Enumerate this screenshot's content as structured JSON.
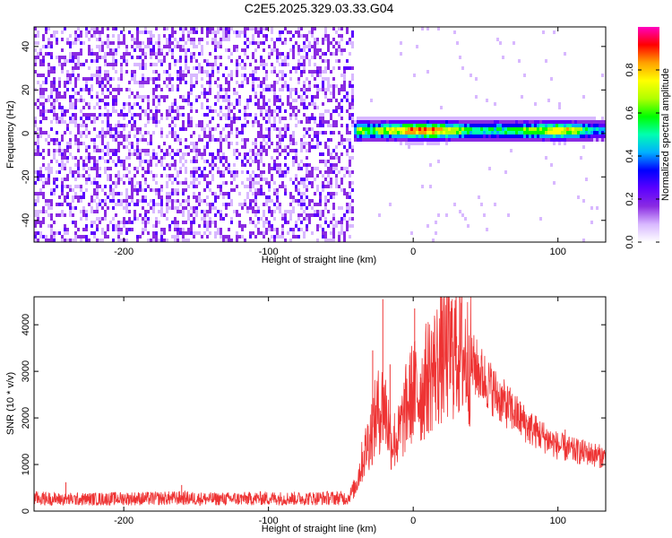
{
  "figure": {
    "title": "C2E5.2025.329.03.33.G04"
  },
  "chart_data": [
    {
      "type": "heatmap",
      "xlabel": "Height of straight line (km)",
      "ylabel": "Frequency (Hz)",
      "xlim": [
        -262,
        133
      ],
      "ylim": [
        -50,
        49
      ],
      "xticks": [
        -200,
        -100,
        0,
        100
      ],
      "yticks": [
        -40,
        -20,
        0,
        20,
        40
      ],
      "noise_region": {
        "x_range": [
          -262,
          -42
        ],
        "level": 0.2
      },
      "signal_band": {
        "x_range": [
          -42,
          133
        ],
        "center_frequency": 0.5,
        "half_width": 3,
        "peak_points": [
          {
            "x": -40,
            "amplitude": 0.8
          },
          {
            "x": -30,
            "amplitude": 0.65
          },
          {
            "x": -20,
            "amplitude": 0.75
          },
          {
            "x": 0,
            "amplitude": 0.95
          },
          {
            "x": 15,
            "amplitude": 0.95
          },
          {
            "x": 40,
            "amplitude": 0.6
          },
          {
            "x": 60,
            "amplitude": 0.6
          },
          {
            "x": 90,
            "amplitude": 0.75
          },
          {
            "x": 100,
            "amplitude": 0.9
          },
          {
            "x": 130,
            "amplitude": 0.45
          }
        ]
      },
      "colorbar": {
        "label": "Normalized spectral amplitude",
        "range": [
          0,
          1
        ],
        "ticks": [
          0.0,
          0.2,
          0.4,
          0.6,
          0.8
        ],
        "colors": [
          "#ffffff",
          "#d8b8ff",
          "#8a2be2",
          "#5b00ff",
          "#0000ff",
          "#00b0ff",
          "#00ffb0",
          "#00ff00",
          "#b0ff00",
          "#ffff00",
          "#ffa000",
          "#ff0000",
          "#ff00c0"
        ]
      }
    },
    {
      "type": "line",
      "xlabel": "Height of straight line (km)",
      "ylabel": "SNR (10 * v/v)",
      "xlim": [
        -262,
        133
      ],
      "ylim": [
        0,
        4600
      ],
      "xticks": [
        -200,
        -100,
        0,
        100
      ],
      "yticks": [
        0,
        1000,
        2000,
        3000,
        4000
      ],
      "color": "#ee3333",
      "series": [
        {
          "x": [
            -262,
            -240,
            -220,
            -200,
            -180,
            -160,
            -140,
            -120,
            -100,
            -80,
            -60,
            -45,
            -40,
            -35,
            -30,
            -25,
            -20,
            -15,
            -10,
            -5,
            0,
            5,
            10,
            20,
            25,
            30,
            40,
            50,
            60,
            70,
            80,
            90,
            100,
            110,
            120,
            133
          ],
          "y": [
            280,
            250,
            260,
            270,
            270,
            280,
            260,
            265,
            275,
            270,
            280,
            280,
            520,
            1100,
            1600,
            2100,
            2300,
            1500,
            1600,
            2200,
            2600,
            2500,
            2900,
            3300,
            3400,
            3500,
            3200,
            2800,
            2400,
            2100,
            1800,
            1600,
            1400,
            1300,
            1250,
            1150
          ],
          "spikes": [
            {
              "x": -21,
              "y": 4550
            },
            {
              "x": -28,
              "y": 3450
            },
            {
              "x": -16,
              "y": 3150
            },
            {
              "x": 1,
              "y": 4350
            },
            {
              "x": 5,
              "y": 2950
            },
            {
              "x": 20,
              "y": 4300
            },
            {
              "x": 30,
              "y": 3750
            },
            {
              "x": -240,
              "y": 620
            },
            {
              "x": -160,
              "y": 560
            },
            {
              "x": 105,
              "y": 1750
            }
          ]
        }
      ]
    }
  ]
}
